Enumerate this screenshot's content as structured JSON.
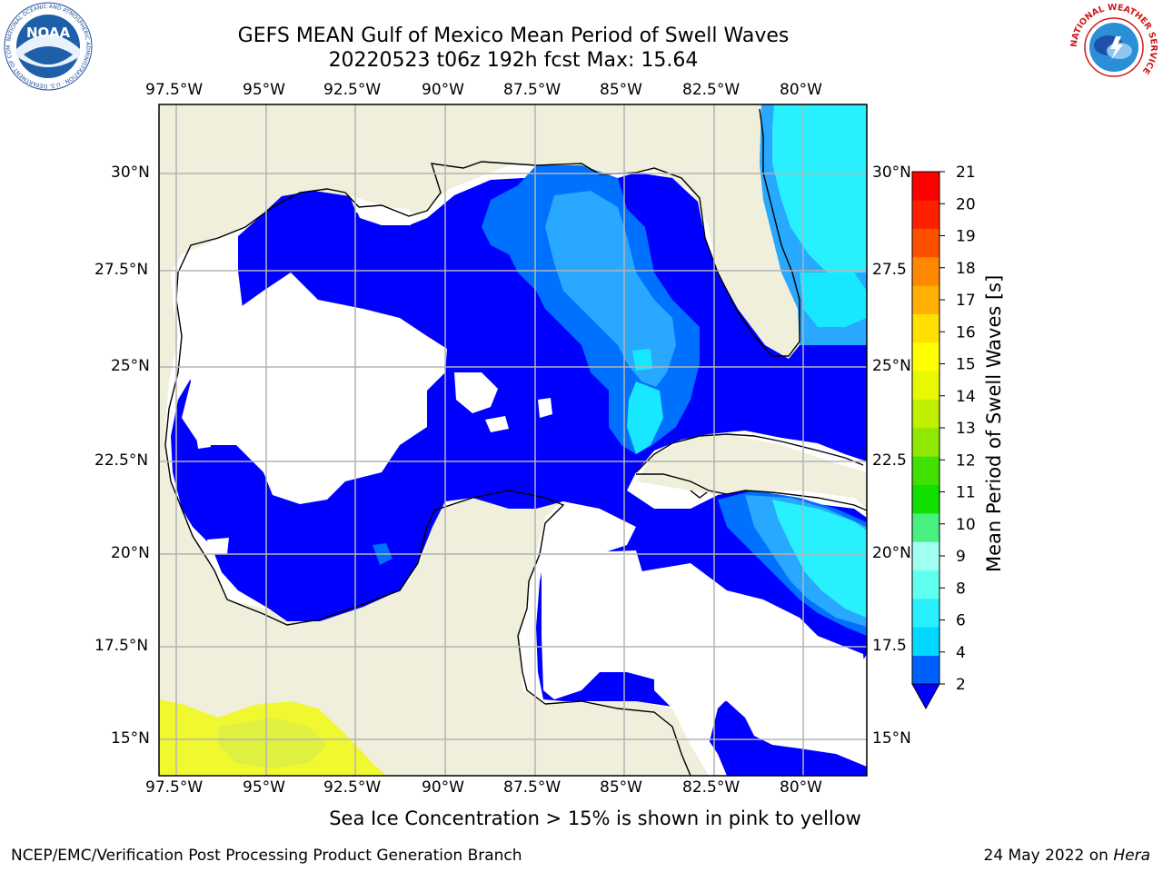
{
  "title": {
    "line1": "GEFS MEAN Gulf of Mexico Mean Period of Swell Waves",
    "line2": "20220523 t06z 192h fcst   Max: 15.64"
  },
  "map": {
    "lon_ticks": [
      "97.5°W",
      "95°W",
      "92.5°W",
      "90°W",
      "87.5°W",
      "85°W",
      "82.5°W",
      "80°W"
    ],
    "lat_ticks_left": [
      "30°N",
      "27.5°N",
      "25°N",
      "22.5°N",
      "20°N",
      "17.5°N",
      "15°N"
    ],
    "lat_ticks_right": [
      "30°N",
      "27.5",
      "25°N",
      "22.5",
      "20°N",
      "17.5",
      "15°N"
    ],
    "land_color": "#efefdc",
    "no_data_color": "#ffffff",
    "grid": true
  },
  "colorbar": {
    "label": "Mean Period of Swell Waves [s]",
    "ticks": [
      "2",
      "4",
      "6",
      "8",
      "9",
      "10",
      "11",
      "12",
      "13",
      "14",
      "15",
      "16",
      "17",
      "18",
      "19",
      "20",
      "21"
    ],
    "colors": [
      "#0060ff",
      "#00d8ff",
      "#28f0ff",
      "#60fff0",
      "#a0fff0",
      "#48f080",
      "#10e000",
      "#40e000",
      "#90e800",
      "#c0f000",
      "#e8f800",
      "#ffff00",
      "#ffe000",
      "#ffb000",
      "#ff8800",
      "#ff5000",
      "#ff2000",
      "#ff0000"
    ],
    "extend_color": "#0000ff"
  },
  "footer": {
    "note": "Sea Ice Concentration > 15% is shown in pink to yellow",
    "left": "NCEP/EMC/Verification Post Processing Product Generation Branch",
    "right_date": "24 May 2022 on ",
    "right_machine": "Hera"
  },
  "logos": {
    "noaa": "NOAA",
    "noaa_ring": "NATIONAL OCEANIC AND ATMOSPHERIC ADMINISTRATION · U.S. DEPARTMENT OF COMMERCE",
    "nws_ring": "NATIONAL WEATHER SERVICE"
  }
}
